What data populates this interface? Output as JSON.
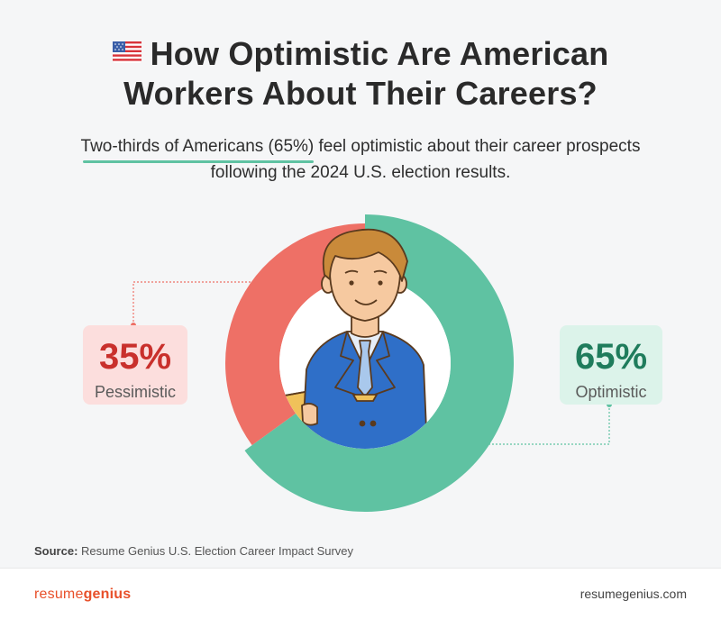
{
  "header": {
    "title_line1": "How Optimistic Are American",
    "title_line2": "Workers About Their Careers?",
    "flag_icon": "us-flag-icon",
    "subtitle_highlight": "Two-thirds of Americans (65%)",
    "subtitle_rest": " feel optimistic about their career prospects",
    "subtitle_line2": "following the 2024 U.S. election results."
  },
  "chart_data": {
    "type": "pie",
    "style": "donut",
    "slices": [
      {
        "label": "Pessimistic",
        "value": 35,
        "display": "35%",
        "color": "#ee7066"
      },
      {
        "label": "Optimistic",
        "value": 65,
        "display": "65%",
        "color": "#5fc2a2"
      }
    ]
  },
  "callouts": {
    "pessimistic_value": "35%",
    "pessimistic_label": "Pessimistic",
    "optimistic_value": "65%",
    "optimistic_label": "Optimistic"
  },
  "source": {
    "label": "Source:",
    "text": "Resume Genius U.S. Election Career Impact Survey"
  },
  "footer": {
    "brand_part1": "resume",
    "brand_part2": "genius",
    "site": "resumegenius.com"
  },
  "colors": {
    "optimistic": "#5fc2a2",
    "pessimistic": "#ee7066",
    "brand": "#e8502a"
  }
}
